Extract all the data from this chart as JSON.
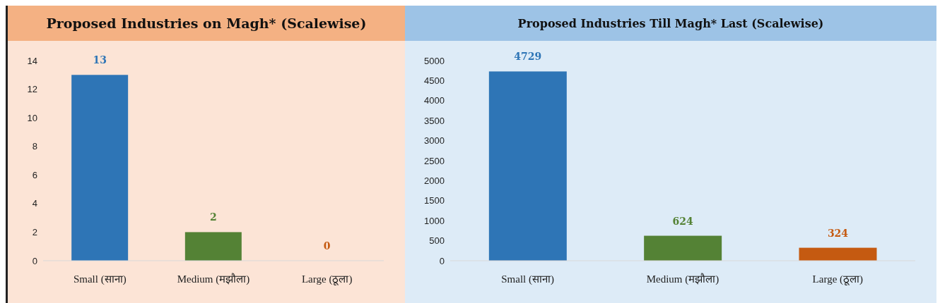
{
  "chart_data": [
    {
      "type": "bar",
      "title": "Proposed Industries on Magh* (Scalewise)",
      "categories": [
        "Small (साना)",
        "Medium (मझौला)",
        "Large (ठूला)"
      ],
      "values": [
        13,
        2,
        0
      ],
      "colors": [
        "#2e75b6",
        "#548235",
        "#c55a11"
      ],
      "ylim": [
        0,
        14
      ],
      "yticks": [
        0,
        2,
        4,
        6,
        8,
        10,
        12,
        14
      ],
      "data_labels": true,
      "grid": false
    },
    {
      "type": "bar",
      "title": "Proposed Industries Till Magh* Last (Scalewise)",
      "categories": [
        "Small (साना)",
        "Medium (मझौला)",
        "Large (ठूला)"
      ],
      "values": [
        4729,
        624,
        324
      ],
      "colors": [
        "#2e75b6",
        "#548235",
        "#c55a11"
      ],
      "ylim": [
        0,
        5000
      ],
      "yticks": [
        0,
        500,
        1000,
        1500,
        2000,
        2500,
        3000,
        3500,
        4000,
        4500,
        5000
      ],
      "data_labels": true,
      "grid": false
    }
  ]
}
